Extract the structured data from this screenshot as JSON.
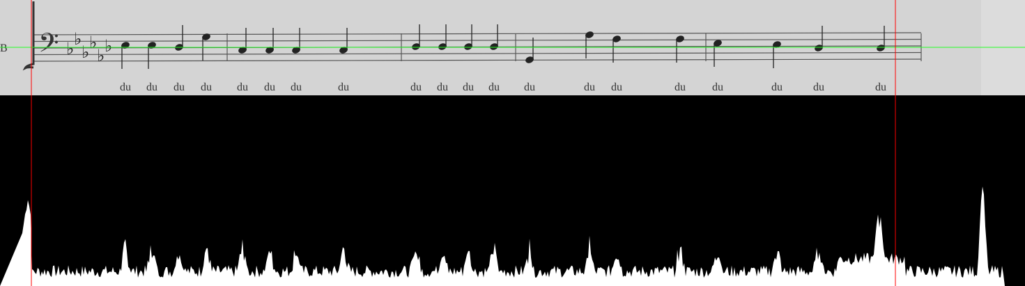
{
  "staff_label": "B",
  "lyrics": [
    "du",
    "du",
    "du",
    "du",
    "du",
    "du",
    "du",
    "du",
    "du",
    "du",
    "du",
    "du",
    "du",
    "du",
    "du",
    "du",
    "du",
    "du",
    "du",
    "du"
  ]
}
